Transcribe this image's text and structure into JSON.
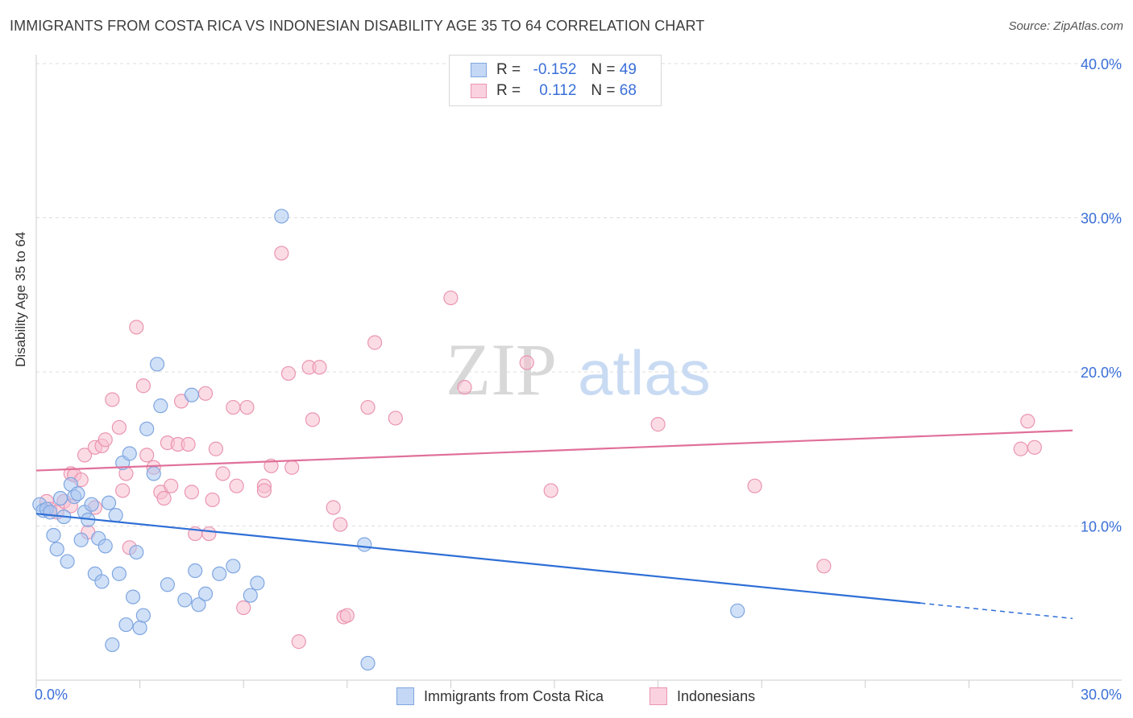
{
  "title": "IMMIGRANTS FROM COSTA RICA VS INDONESIAN DISABILITY AGE 35 TO 64 CORRELATION CHART",
  "source": "Source: ZipAtlas.com",
  "watermark": "ZIPatlas",
  "legend": {
    "r_label": "R =",
    "n_label": "N =",
    "rows": [
      {
        "r": "-0.152",
        "n": "49",
        "color": "#a9c6f0",
        "border": "#7fa6e0"
      },
      {
        "r": "0.112",
        "n": "68",
        "color": "#f7bfd0",
        "border": "#ea95b1"
      }
    ]
  },
  "bottom_legend": [
    {
      "label": "Immigrants from Costa Rica",
      "color": "#a9c6f0",
      "border": "#7fa6e0"
    },
    {
      "label": "Indonesians",
      "color": "#f7bfd0",
      "border": "#ea95b1"
    }
  ],
  "chart_data": {
    "type": "scatter",
    "title": "IMMIGRANTS FROM COSTA RICA VS INDONESIAN DISABILITY AGE 35 TO 64 CORRELATION CHART",
    "xlabel": "",
    "ylabel": "Disability Age 35 to 64",
    "xlim": [
      0,
      30
    ],
    "ylim": [
      0,
      40
    ],
    "x_tick_labels": [
      "0.0%",
      "30.0%"
    ],
    "y_ticks": [
      10,
      20,
      30,
      40
    ],
    "y_tick_labels": [
      "10.0%",
      "20.0%",
      "30.0%",
      "40.0%"
    ],
    "grid": "horizontal dashed",
    "series": [
      {
        "name": "Immigrants from Costa Rica",
        "color": "#7fa6e0",
        "fill": "#a9c6f0",
        "trend": {
          "x0": 0,
          "y0": 10.8,
          "x1": 25.6,
          "y1": 5.0,
          "dashed_to_x": 30,
          "dashed_to_y": 4.0,
          "color": "#2f6fd6"
        },
        "points": [
          [
            0.1,
            11.4
          ],
          [
            0.2,
            11.0
          ],
          [
            0.3,
            11.1
          ],
          [
            0.4,
            10.9
          ],
          [
            0.5,
            9.4
          ],
          [
            0.6,
            8.5
          ],
          [
            0.7,
            11.8
          ],
          [
            0.8,
            10.6
          ],
          [
            0.9,
            7.7
          ],
          [
            1.0,
            12.7
          ],
          [
            1.1,
            11.9
          ],
          [
            1.2,
            12.1
          ],
          [
            1.3,
            9.1
          ],
          [
            1.4,
            10.9
          ],
          [
            1.5,
            10.4
          ],
          [
            1.6,
            11.4
          ],
          [
            1.7,
            6.9
          ],
          [
            1.8,
            9.2
          ],
          [
            1.9,
            6.4
          ],
          [
            2.0,
            8.7
          ],
          [
            2.1,
            11.5
          ],
          [
            2.2,
            2.3
          ],
          [
            2.3,
            10.7
          ],
          [
            2.4,
            6.9
          ],
          [
            2.5,
            14.1
          ],
          [
            2.6,
            3.6
          ],
          [
            2.7,
            14.7
          ],
          [
            2.8,
            5.4
          ],
          [
            2.9,
            8.3
          ],
          [
            3.0,
            3.4
          ],
          [
            3.1,
            4.2
          ],
          [
            3.2,
            16.3
          ],
          [
            3.4,
            13.4
          ],
          [
            3.5,
            20.5
          ],
          [
            3.6,
            17.8
          ],
          [
            3.8,
            6.2
          ],
          [
            4.3,
            5.2
          ],
          [
            4.5,
            18.5
          ],
          [
            4.6,
            7.1
          ],
          [
            4.7,
            4.9
          ],
          [
            4.9,
            5.6
          ],
          [
            5.3,
            6.9
          ],
          [
            5.7,
            7.4
          ],
          [
            6.2,
            5.5
          ],
          [
            6.4,
            6.3
          ],
          [
            7.1,
            30.1
          ],
          [
            9.5,
            8.8
          ],
          [
            9.6,
            1.1
          ],
          [
            20.3,
            4.5
          ]
        ]
      },
      {
        "name": "Indonesians",
        "color": "#ea95b1",
        "fill": "#f7bfd0",
        "trend": {
          "x0": 0,
          "y0": 13.6,
          "x1": 30,
          "y1": 16.2,
          "color": "#e0709a"
        },
        "points": [
          [
            0.3,
            11.6
          ],
          [
            0.4,
            11.1
          ],
          [
            0.6,
            10.9
          ],
          [
            0.8,
            11.6
          ],
          [
            1.0,
            11.3
          ],
          [
            1.0,
            13.4
          ],
          [
            1.1,
            13.3
          ],
          [
            1.3,
            13.0
          ],
          [
            1.4,
            14.6
          ],
          [
            1.5,
            9.6
          ],
          [
            1.7,
            11.2
          ],
          [
            1.7,
            15.1
          ],
          [
            1.9,
            15.2
          ],
          [
            2.0,
            15.6
          ],
          [
            2.2,
            18.2
          ],
          [
            2.4,
            16.4
          ],
          [
            2.5,
            12.3
          ],
          [
            2.6,
            13.4
          ],
          [
            2.7,
            8.6
          ],
          [
            2.9,
            22.9
          ],
          [
            3.1,
            19.1
          ],
          [
            3.2,
            14.6
          ],
          [
            3.4,
            13.8
          ],
          [
            3.6,
            12.2
          ],
          [
            3.7,
            11.8
          ],
          [
            3.8,
            15.4
          ],
          [
            3.9,
            12.6
          ],
          [
            4.1,
            15.3
          ],
          [
            4.2,
            18.1
          ],
          [
            4.4,
            15.3
          ],
          [
            4.5,
            12.2
          ],
          [
            4.6,
            9.5
          ],
          [
            4.9,
            18.6
          ],
          [
            5.0,
            9.5
          ],
          [
            5.1,
            11.7
          ],
          [
            5.2,
            15.0
          ],
          [
            5.4,
            13.4
          ],
          [
            5.7,
            17.7
          ],
          [
            5.8,
            12.6
          ],
          [
            6.0,
            4.7
          ],
          [
            6.1,
            17.7
          ],
          [
            6.6,
            12.6
          ],
          [
            6.6,
            12.3
          ],
          [
            6.8,
            13.9
          ],
          [
            7.1,
            27.7
          ],
          [
            7.3,
            19.9
          ],
          [
            7.4,
            13.8
          ],
          [
            7.6,
            2.5
          ],
          [
            7.9,
            20.3
          ],
          [
            8.0,
            16.9
          ],
          [
            8.2,
            20.3
          ],
          [
            8.6,
            11.2
          ],
          [
            8.8,
            10.1
          ],
          [
            8.9,
            4.1
          ],
          [
            9.0,
            4.2
          ],
          [
            9.6,
            17.7
          ],
          [
            9.8,
            21.9
          ],
          [
            10.4,
            17.0
          ],
          [
            12.0,
            24.8
          ],
          [
            12.4,
            19.0
          ],
          [
            14.2,
            20.6
          ],
          [
            14.9,
            12.3
          ],
          [
            18.0,
            16.6
          ],
          [
            20.8,
            12.6
          ],
          [
            22.8,
            7.4
          ],
          [
            28.5,
            15.0
          ],
          [
            28.7,
            16.8
          ],
          [
            28.9,
            15.1
          ]
        ]
      }
    ]
  }
}
